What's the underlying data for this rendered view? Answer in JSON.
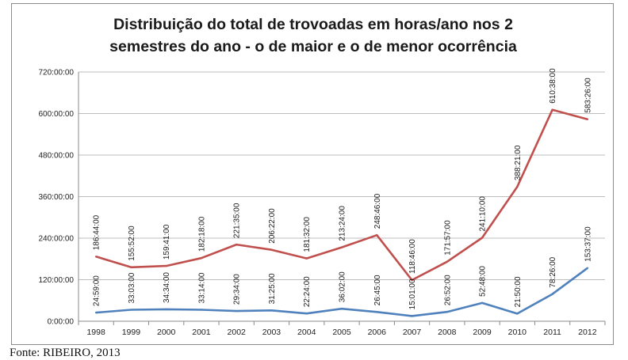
{
  "chart_data": {
    "type": "line",
    "title_lines": [
      "Distribuição do total de trovoadas em horas/ano nos 2",
      "semestres do ano - o de maior e o de menor ocorrência"
    ],
    "categories": [
      "1998",
      "1999",
      "2000",
      "2001",
      "2002",
      "2003",
      "2004",
      "2005",
      "2006",
      "2007",
      "2008",
      "2009",
      "2010",
      "2011",
      "2012"
    ],
    "y_ticks": [
      "0:00:00",
      "120:00:00",
      "240:00:00",
      "360:00:00",
      "480:00:00",
      "600:00:00",
      "720:00:00"
    ],
    "ylim_hours": [
      0,
      720
    ],
    "grid": true,
    "legend": "none",
    "series": [
      {
        "color": "#c0504d",
        "labels": [
          "186:44:00",
          "155:52:00",
          "159:41:00",
          "182:18:00",
          "221:35:00",
          "206:22:00",
          "181:32:00",
          "213:24:00",
          "248:46:00",
          "118:46:00",
          "171:57:00",
          "241:10:00",
          "388:21:00",
          "610:38:00",
          "583:26:00"
        ],
        "values_hours": [
          186.73,
          155.87,
          159.68,
          182.3,
          221.58,
          206.37,
          181.53,
          213.4,
          248.77,
          118.77,
          171.95,
          241.17,
          388.35,
          610.63,
          583.43
        ]
      },
      {
        "color": "#4f81bd",
        "labels": [
          "24:59:00",
          "33:03:00",
          "34:34:00",
          "33:14:00",
          "29:34:00",
          "31:25:00",
          "22:24:00",
          "36:02:00",
          "26:45:00",
          "15:01:00",
          "26:52:00",
          "52:48:00",
          "21:50:00",
          "78:26:00",
          "153:37:00"
        ],
        "values_hours": [
          24.98,
          33.05,
          34.57,
          33.23,
          29.57,
          31.42,
          22.4,
          36.03,
          26.75,
          15.02,
          26.87,
          52.8,
          21.83,
          78.43,
          153.62
        ]
      }
    ]
  },
  "source": "Fonte: RIBEIRO, 2013"
}
